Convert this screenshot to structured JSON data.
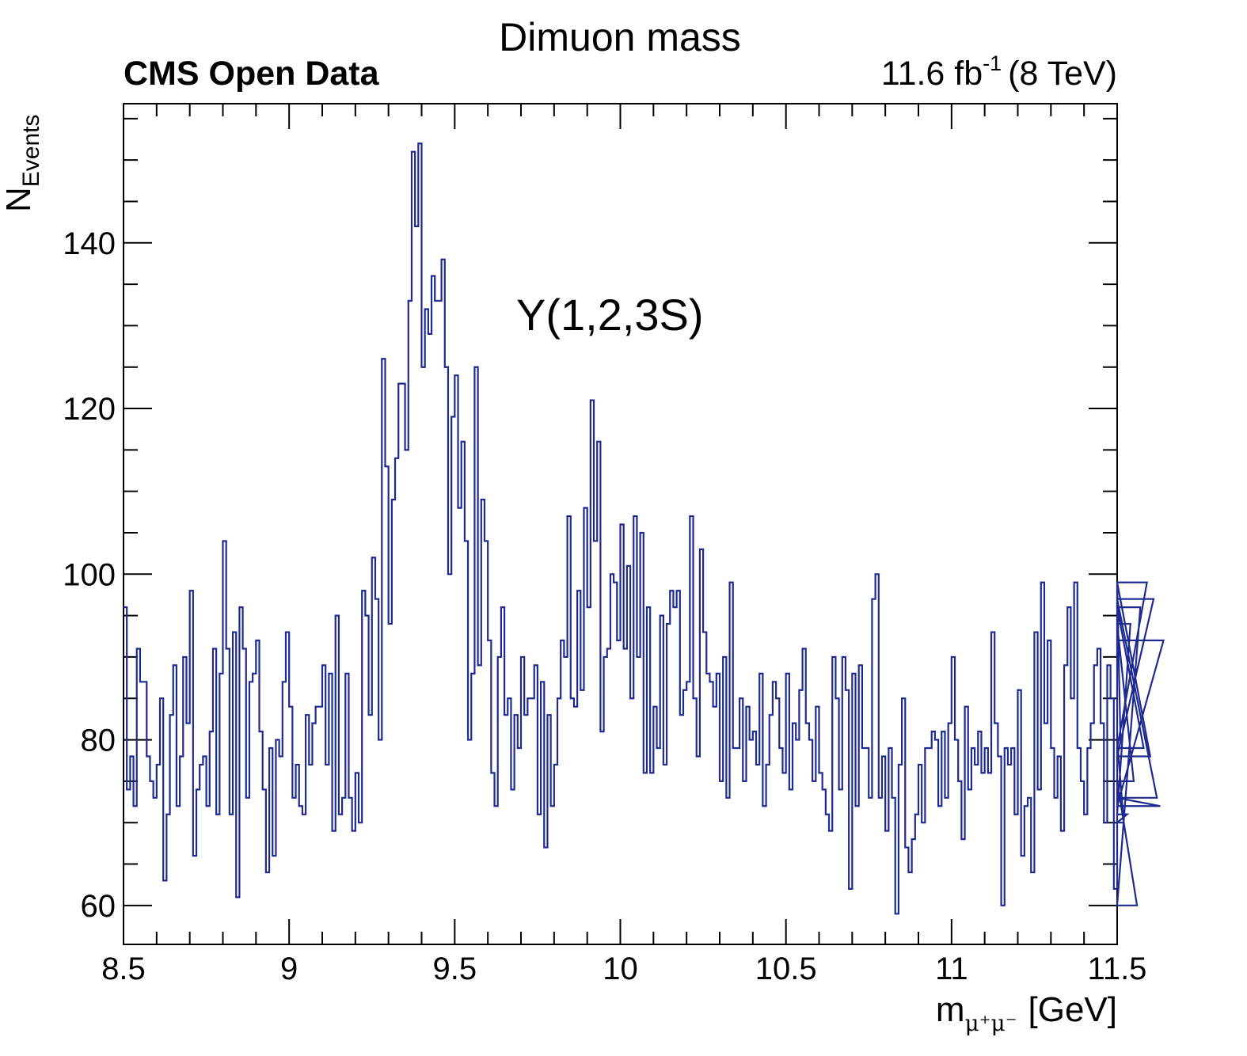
{
  "chart_data": {
    "type": "histogram",
    "title": "Dimuon mass",
    "experiment_label": "CMS Open Data",
    "lumi": {
      "value": "11.6 fb",
      "exponent": "-1",
      "energy": "(8 TeV)"
    },
    "annotation": "Υ(1,2,3S)",
    "xlabel": {
      "base": "m",
      "subscript": "μ⁺μ⁻",
      "unit": "[GeV]"
    },
    "ylabel": {
      "base": "N",
      "subscript": "Events"
    },
    "xlim": [
      8.5,
      11.5
    ],
    "ylim": [
      55.3,
      156.8
    ],
    "x_ticks": [
      8.5,
      9,
      9.5,
      10,
      10.5,
      11,
      11.5
    ],
    "x_tick_labels": [
      "8.5",
      "9",
      "9.5",
      "10",
      "10.5",
      "11",
      "11.5"
    ],
    "y_ticks": [
      60,
      80,
      100,
      120,
      140
    ],
    "y_tick_labels": [
      "60",
      "80",
      "100",
      "120",
      "140"
    ],
    "bin_width": 0.01,
    "x_start": 8.5,
    "values": [
      96,
      74,
      78,
      72,
      91,
      87,
      87,
      78,
      75,
      73,
      77,
      85,
      63,
      71,
      83,
      89,
      72,
      78,
      90,
      82,
      98,
      66,
      74,
      77,
      78,
      72,
      81,
      91,
      71,
      88,
      104,
      91,
      71,
      93,
      61,
      96,
      91,
      73,
      87,
      88,
      92,
      81,
      74,
      64,
      79,
      66,
      80,
      78,
      87,
      93,
      84,
      73,
      77,
      72,
      71,
      83,
      77,
      82,
      84,
      84,
      89,
      77,
      88,
      69,
      95,
      71,
      73,
      88,
      73,
      69,
      76,
      70,
      98,
      95,
      83,
      102,
      97,
      80,
      126,
      113,
      94,
      109,
      114,
      123,
      123,
      115,
      133,
      151,
      142,
      152,
      125,
      132,
      129,
      136,
      133,
      133,
      138,
      125,
      100,
      119,
      124,
      108,
      116,
      104,
      80,
      88,
      125,
      89,
      109,
      104,
      92,
      76,
      72,
      90,
      96,
      83,
      85,
      74,
      83,
      79,
      90,
      83,
      85,
      85,
      89,
      71,
      87,
      67,
      83,
      72,
      77,
      85,
      92,
      90,
      107,
      85,
      84,
      98,
      86,
      108,
      96,
      121,
      104,
      116,
      81,
      90,
      91,
      100,
      99,
      92,
      106,
      91,
      101,
      85,
      107,
      90,
      105,
      76,
      96,
      76,
      84,
      79,
      95,
      77,
      94,
      98,
      96,
      98,
      83,
      86,
      87,
      107,
      85,
      78,
      103,
      93,
      88,
      87,
      84,
      88,
      75,
      90,
      73,
      99,
      79,
      79,
      85,
      75,
      84,
      80,
      81,
      77,
      88,
      72,
      77,
      83,
      87,
      85,
      79,
      76,
      88,
      74,
      82,
      80,
      86,
      91,
      82,
      80,
      75,
      84,
      76,
      74,
      71,
      69,
      90,
      85,
      74,
      90,
      86,
      62,
      88,
      72,
      89,
      79,
      79,
      73,
      97,
      100,
      73,
      78,
      69,
      79,
      73,
      59,
      77,
      85,
      67,
      64,
      68,
      71,
      77,
      70,
      79,
      79,
      81,
      80,
      72,
      81,
      73,
      82,
      90,
      80,
      75,
      68,
      84,
      74,
      79,
      77,
      81,
      76,
      79,
      76,
      93,
      82,
      78,
      60,
      79,
      77,
      79,
      71,
      86,
      66,
      72,
      73,
      64,
      93,
      74,
      99,
      82,
      92,
      79,
      73,
      78,
      69,
      89,
      96,
      85,
      99,
      79,
      75,
      71,
      79,
      82,
      89,
      91,
      82,
      70,
      89,
      85,
      62,
      99,
      80,
      70,
      71,
      94,
      75,
      60,
      96,
      79,
      99,
      78,
      97,
      73,
      72,
      92
    ]
  },
  "colors": {
    "line": "#1e2a8f",
    "axis": "#000000",
    "background": "#ffffff"
  }
}
